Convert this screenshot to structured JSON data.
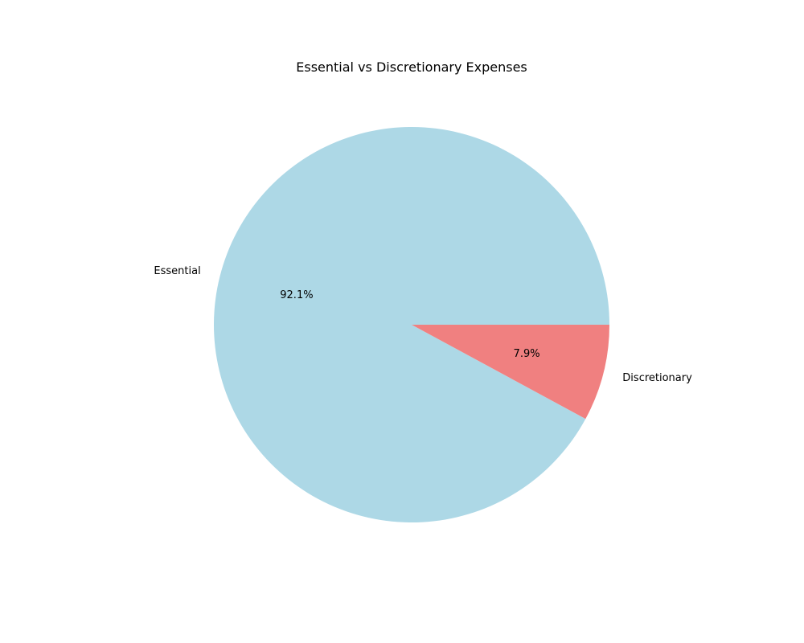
{
  "chart_data": {
    "type": "pie",
    "title": "Essential vs Discretionary Expenses",
    "slices": [
      {
        "label": "Essential",
        "percent": 92.1,
        "percent_label": "92.1%",
        "color": "#add8e6"
      },
      {
        "label": "Discretionary",
        "percent": 7.9,
        "percent_label": "7.9%",
        "color": "#f08080"
      }
    ],
    "start_angle_deg": 0,
    "direction": "counterclockwise"
  }
}
